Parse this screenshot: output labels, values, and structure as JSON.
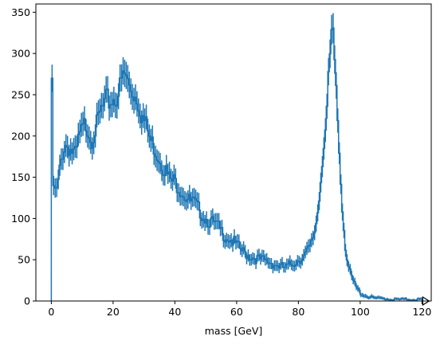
{
  "chart_data": {
    "type": "line",
    "title": "",
    "xlabel": "mass [GeV]",
    "ylabel": "",
    "xlim": [
      -5,
      123
    ],
    "ylim": [
      0,
      360
    ],
    "xticks": [
      0,
      20,
      40,
      60,
      80,
      100,
      120
    ],
    "yticks": [
      0,
      50,
      100,
      150,
      200,
      250,
      300,
      350
    ],
    "grid": false,
    "legend": "none",
    "color": "#1f77b4",
    "bin_width": 0.5,
    "overflow_marker_x": 120,
    "series": [
      {
        "x": [
          0,
          0.5,
          1,
          2,
          3,
          4,
          5,
          6,
          7,
          8,
          9,
          10,
          11,
          12,
          13,
          14,
          15,
          16,
          17,
          18,
          19,
          20,
          21,
          22,
          23,
          24,
          25,
          26,
          27,
          28,
          29,
          30,
          31,
          32,
          33,
          34,
          35,
          36,
          37,
          38,
          39,
          40,
          41,
          42,
          43,
          44,
          45,
          46,
          47,
          48,
          49,
          50,
          52,
          54,
          56,
          58,
          60,
          62,
          64,
          66,
          68,
          70,
          72,
          74,
          76,
          78,
          80,
          82,
          84,
          85,
          86,
          87,
          88,
          89,
          90,
          91,
          92,
          93,
          94,
          95,
          96,
          97,
          98,
          99,
          100,
          101,
          102,
          104,
          106,
          108,
          110,
          112,
          114,
          116,
          118,
          120
        ],
        "y": [
          270,
          140,
          130,
          135,
          165,
          185,
          190,
          185,
          180,
          175,
          200,
          205,
          215,
          210,
          195,
          205,
          215,
          230,
          235,
          245,
          240,
          245,
          245,
          255,
          270,
          275,
          262,
          255,
          250,
          245,
          230,
          220,
          210,
          195,
          190,
          180,
          175,
          165,
          160,
          150,
          145,
          145,
          140,
          135,
          130,
          125,
          120,
          120,
          115,
          110,
          105,
          100,
          95,
          90,
          80,
          75,
          68,
          60,
          55,
          52,
          50,
          48,
          45,
          42,
          40,
          45,
          50,
          55,
          65,
          80,
          100,
          135,
          185,
          215,
          280,
          330,
          280,
          200,
          130,
          75,
          45,
          30,
          22,
          15,
          10,
          8,
          6,
          4,
          3,
          3,
          2,
          2,
          2,
          2,
          2,
          2
        ]
      }
    ]
  }
}
